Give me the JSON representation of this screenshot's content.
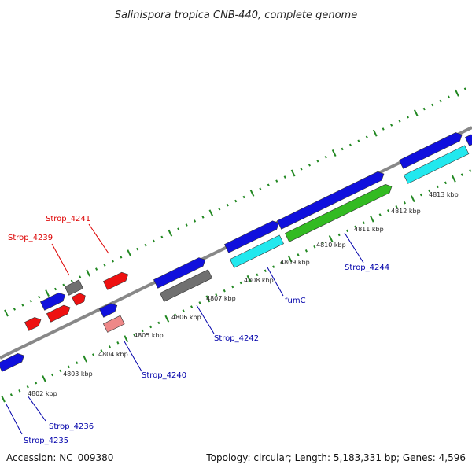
{
  "title": "Salinispora tropica CNB-440, complete genome",
  "accession": "Accession: NC_009380",
  "summary": "Topology: circular; Length: 5,183,331 bp; Genes: 4,596",
  "colors": {
    "forward_gene": "#1010dd",
    "reverse_gene": "#ee1111",
    "grey_gene": "#707070",
    "cyan_gene": "#22e8ee",
    "green_gene": "#33bb22",
    "pink_gene": "#ee8888",
    "tick": "#228822",
    "backbone": "#888888",
    "label_blue": "#0000aa",
    "label_red": "#dd0000"
  },
  "scale_labels": [
    "4802 kbp",
    "4803 kbp",
    "4804 kbp",
    "4805 kbp",
    "4806 kbp",
    "4807 kbp",
    "4808 kbp",
    "4809 kbp",
    "4810 kbp",
    "4811 kbp",
    "4812 kbp",
    "4813 kbp"
  ],
  "gene_labels": [
    {
      "text": "Strop_4241",
      "strand": "reverse"
    },
    {
      "text": "Strop_4239",
      "strand": "reverse"
    },
    {
      "text": "Strop_4244",
      "strand": "forward"
    },
    {
      "text": "fumC",
      "strand": "forward"
    },
    {
      "text": "Strop_4242",
      "strand": "forward"
    },
    {
      "text": "Strop_4240",
      "strand": "forward"
    },
    {
      "text": "Strop_4236",
      "strand": "forward"
    },
    {
      "text": "Strop_4235",
      "strand": "forward"
    }
  ]
}
